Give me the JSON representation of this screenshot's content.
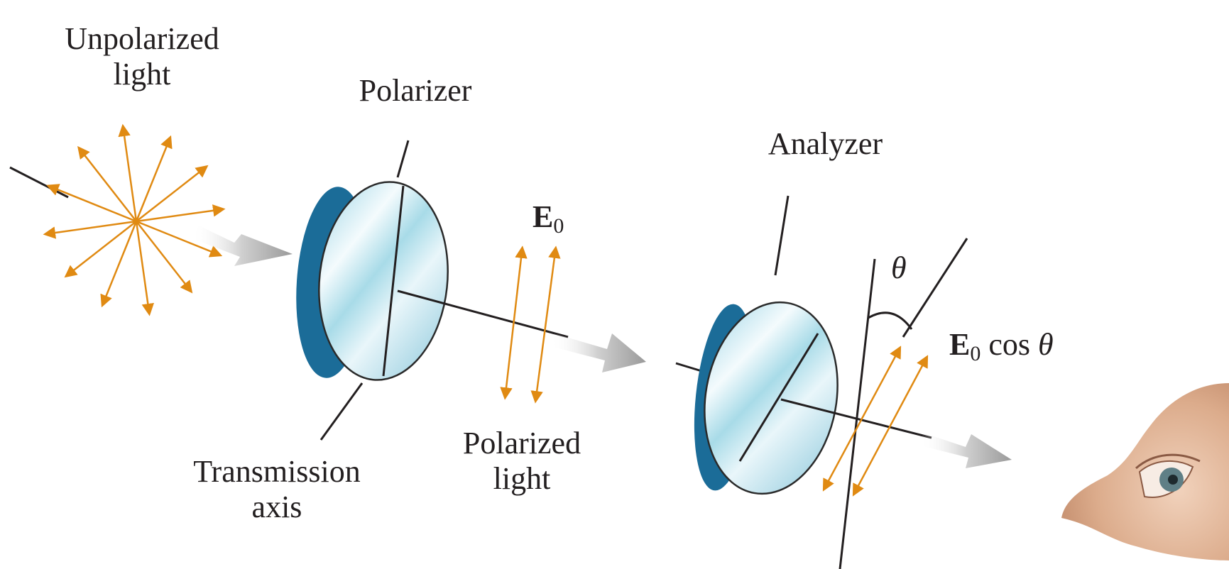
{
  "labels": {
    "unpolarized_line1": "Unpolarized",
    "unpolarized_line2": "light",
    "polarizer": "Polarizer",
    "analyzer": "Analyzer",
    "transmission_line1": "Transmission",
    "transmission_line2": "axis",
    "polarized_line1": "Polarized",
    "polarized_line2": "light",
    "e0_symbol": "E",
    "e0_subscript": "0",
    "theta": "θ",
    "e0cos_symbol": "E",
    "e0cos_subscript": "0",
    "e0cos_function": "cos",
    "e0cos_theta": "θ"
  },
  "colors": {
    "arrow_orange": "#e08a12",
    "lens_rim": "#1b6c98",
    "lens_face": "#bfe6ef",
    "line": "#231f20",
    "beam_gray": "#a6a6a6",
    "skin": "#e6bd9f"
  },
  "icons": {
    "eye": "observer-eye-icon"
  }
}
